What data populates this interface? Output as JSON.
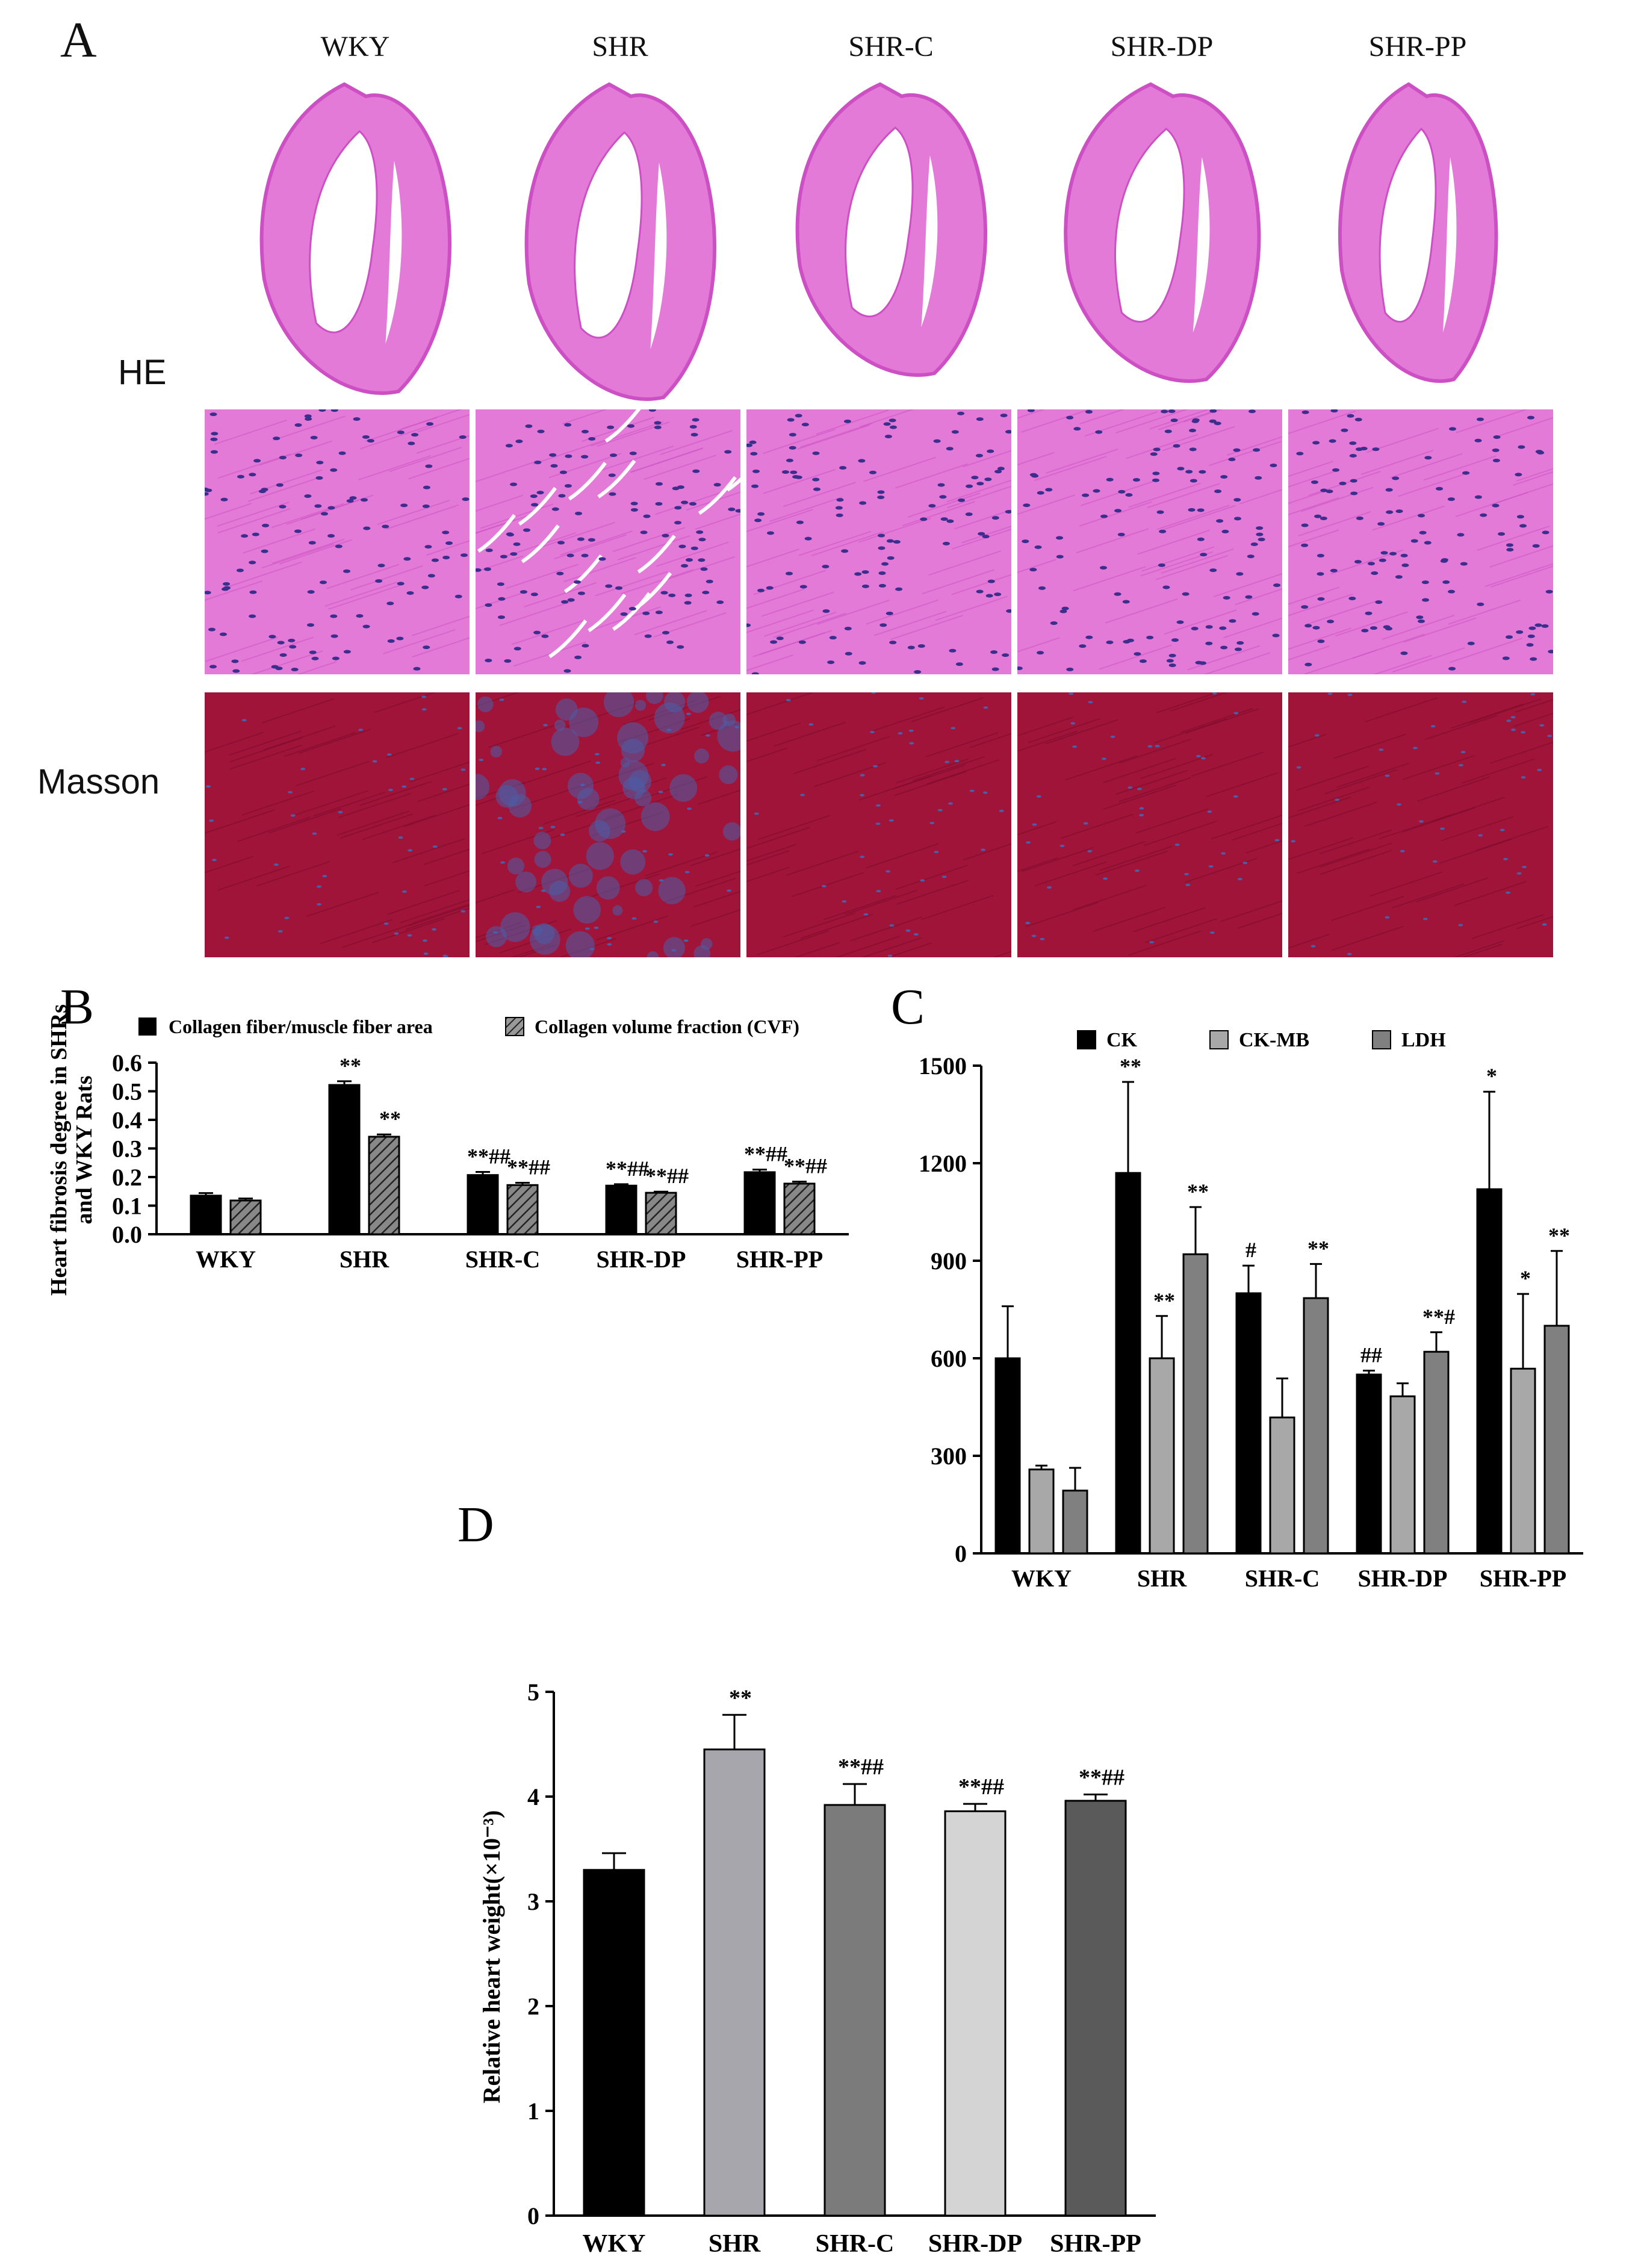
{
  "figure": {
    "panel_a": {
      "letter": "A",
      "groups": [
        "WKY",
        "SHR",
        "SHR-C",
        "SHR-DP",
        "SHR-PP"
      ],
      "row_labels": {
        "he": "HE",
        "masson": "Masson"
      },
      "colors": {
        "he_stain": "#e47ad8",
        "he_dark": "#cc4fc4",
        "nuclei": "#3a2f8c",
        "masson_muscle": "#a0143a",
        "masson_collagen": "#4a5fa8",
        "masson_dark": "#7a0b28"
      }
    }
  },
  "chart_data": [
    {
      "panel": "B",
      "type": "bar",
      "categories": [
        "WKY",
        "SHR",
        "SHR-C",
        "SHR-DP",
        "SHR-PP"
      ],
      "series": [
        {
          "name": "Collagen fiber/muscle fiber area",
          "values": [
            0.135,
            0.522,
            0.207,
            0.17,
            0.217
          ],
          "errors": [
            0.009,
            0.013,
            0.011,
            0.005,
            0.009
          ],
          "color": "#000000",
          "pattern": "solid",
          "annotations": [
            "",
            "**",
            "**##",
            "**##",
            "**##"
          ]
        },
        {
          "name": "Collagen volume fraction (CVF)",
          "values": [
            0.118,
            0.341,
            0.172,
            0.145,
            0.177
          ],
          "errors": [
            0.007,
            0.008,
            0.008,
            0.004,
            0.007
          ],
          "color": "#555555",
          "pattern": "hatched",
          "annotations": [
            "",
            "**",
            "**##",
            "**##",
            "**##"
          ]
        }
      ],
      "ylabel_lines": [
        "Heart fibrosis degree in SHRs",
        "and WKY Rats"
      ],
      "ylim": [
        0,
        0.6
      ],
      "yticks": [
        "0.0",
        "0.1",
        "0.2",
        "0.3",
        "0.4",
        "0.5",
        "0.6"
      ],
      "legend": "top"
    },
    {
      "panel": "C",
      "type": "bar",
      "categories": [
        "WKY",
        "SHR",
        "SHR-C",
        "SHR-DP",
        "SHR-PP"
      ],
      "series": [
        {
          "name": "CK",
          "values": [
            600,
            1170,
            800,
            550,
            1120
          ],
          "errors": [
            160,
            280,
            85,
            12,
            300
          ],
          "color": "#000000",
          "annotations": [
            "",
            "**",
            "#",
            "##",
            "*"
          ]
        },
        {
          "name": "CK-MB",
          "values": [
            258,
            600,
            418,
            483,
            568
          ],
          "errors": [
            12,
            130,
            120,
            40,
            230
          ],
          "color": "#a8a8a8",
          "annotations": [
            "",
            "**",
            "",
            "",
            "*"
          ]
        },
        {
          "name": "LDH",
          "values": [
            193,
            920,
            785,
            620,
            700
          ],
          "errors": [
            70,
            145,
            105,
            60,
            230
          ],
          "color": "#808080",
          "annotations": [
            "",
            "**",
            "**",
            "**#",
            "**"
          ]
        }
      ],
      "ylim": [
        0,
        1500
      ],
      "yticks": [
        "0",
        "300",
        "600",
        "900",
        "1200",
        "1500"
      ],
      "legend": "top"
    },
    {
      "panel": "D",
      "type": "bar",
      "categories": [
        "WKY",
        "SHR",
        "SHR-C",
        "SHR-DP",
        "SHR-PP"
      ],
      "values": [
        3.3,
        4.45,
        3.92,
        3.86,
        3.96
      ],
      "errors": [
        0.16,
        0.33,
        0.2,
        0.07,
        0.06
      ],
      "colors": [
        "#000000",
        "#a6a6ac",
        "#7b7b7b",
        "#d4d4d4",
        "#5a5a5a"
      ],
      "annotations": [
        "",
        "**",
        "**##",
        "**##",
        "**##"
      ],
      "ylabel": "Relative heart weight(×10⁻³)",
      "ylim": [
        0,
        5
      ],
      "yticks": [
        "0",
        "1",
        "2",
        "3",
        "4",
        "5"
      ]
    }
  ]
}
